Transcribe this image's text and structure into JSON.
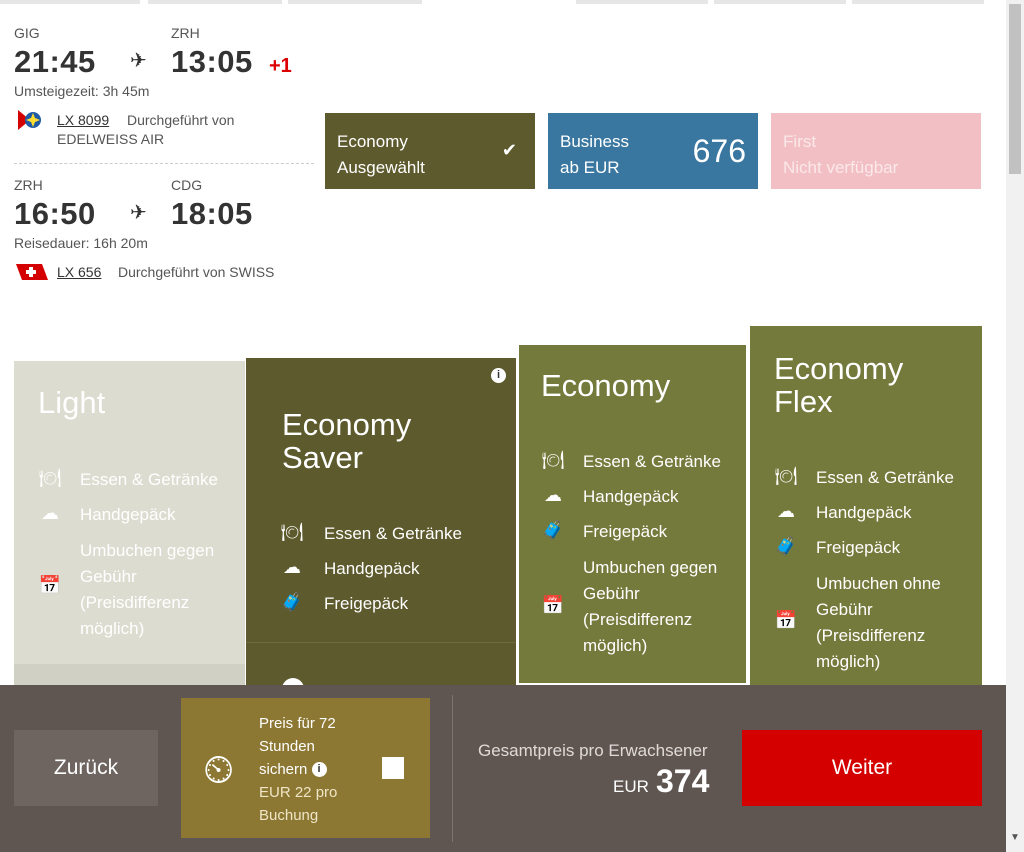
{
  "segments": [
    {
      "from": "GIG",
      "to": "ZRH",
      "dep": "21:45",
      "arr": "13:05",
      "day_offset": "+1",
      "info": "Umsteigezeit: 3h 45m",
      "flight_no": "LX 8099",
      "operated_by_line1": "Durchgeführt von",
      "operated_by_line2": "EDELWEISS AIR"
    },
    {
      "from": "ZRH",
      "to": "CDG",
      "dep": "16:50",
      "arr": "18:05",
      "info": "Reisedauer: 16h 20m",
      "flight_no": "LX 656",
      "operated_by_line1": "Durchgeführt von SWISS"
    }
  ],
  "cabins": [
    {
      "name": "Economy",
      "sub": "Ausgewählt",
      "color": "#5d5a2d"
    },
    {
      "name": "Business",
      "sub": "ab EUR",
      "price": "676",
      "color": "#3a77a0"
    },
    {
      "name": "First",
      "sub": "Nicht verfügbar",
      "color": "#f2c0c4"
    }
  ],
  "fares": [
    {
      "name_line1": "Light",
      "color": "#dcdcd0",
      "features": [
        "Essen & Getränke",
        "Handgepäck",
        "Umbuchen gegen",
        "Gebühr",
        "(Preisdifferenz",
        "möglich)"
      ]
    },
    {
      "name_line1": "Economy",
      "name_line2": "Saver",
      "color": "#5d5a2d",
      "features": [
        "Essen & Getränke",
        "Handgepäck",
        "Freigepäck"
      ]
    },
    {
      "name_line1": "Economy",
      "color": "#747a3b",
      "features": [
        "Essen & Getränke",
        "Handgepäck",
        "Freigepäck",
        "Umbuchen gegen",
        "Gebühr",
        "(Preisdifferenz",
        "möglich)"
      ]
    },
    {
      "name_line1": "Economy",
      "name_line2": "Flex",
      "color": "#747a3b",
      "features": [
        "Essen & Getränke",
        "Handgepäck",
        "Freigepäck",
        "Umbuchen ohne",
        "Gebühr",
        "(Preisdifferenz",
        "möglich)"
      ]
    }
  ],
  "bottom_bar": {
    "back_label": "Zurück",
    "hold_line1": "Preis für 72",
    "hold_line2": "Stunden",
    "hold_line3": "sichern",
    "hold_price_line1": "EUR  22 pro",
    "hold_price_line2": "Buchung",
    "total_label": "Gesamtpreis pro Erwachsener",
    "currency": "EUR",
    "total": "374",
    "next_label": "Weiter"
  },
  "icons": {
    "plane": "airplane-icon",
    "check": "checkmark-icon",
    "info": "info-icon"
  }
}
